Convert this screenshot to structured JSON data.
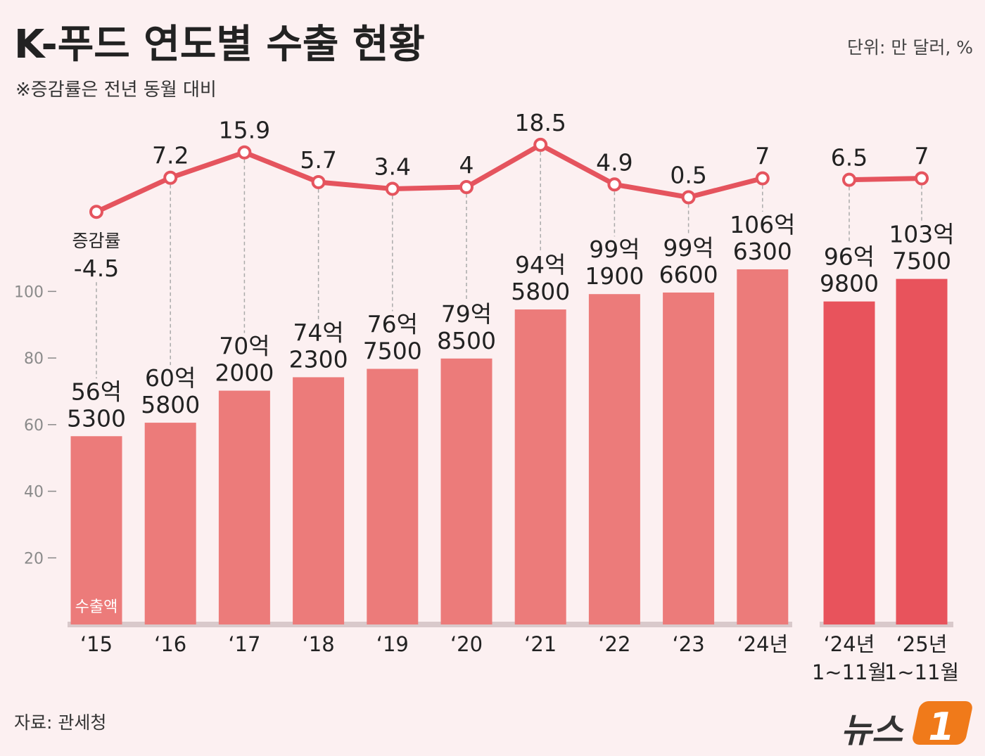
{
  "title": "K-푸드 연도별 수출 현황",
  "subtitle": "※증감률은 전년 동월 대비",
  "unit": "단위: 만 달러, %",
  "source": "자료: 관세청",
  "logo": [
    "뉴스",
    "1"
  ],
  "chart_data": [
    {
      "type": "combo",
      "categories": [
        "‘15",
        "‘16",
        "‘17",
        "‘18",
        "‘19",
        "‘20",
        "‘21",
        "‘22",
        "‘23",
        "‘24년"
      ],
      "ylim": [
        0,
        110
      ],
      "yticks": [
        20,
        40,
        60,
        80,
        100
      ],
      "y2lim": [
        -10,
        25
      ],
      "series": [
        {
          "name": "수출액",
          "type": "bar",
          "color": "#ec7b7a",
          "values": [
            56.53,
            60.58,
            70.2,
            74.23,
            76.75,
            79.85,
            94.58,
            99.19,
            99.66,
            106.63
          ],
          "value_labels": [
            "56억\n5300",
            "60억\n5800",
            "70억\n2000",
            "74억\n2300",
            "76억\n7500",
            "79억\n8500",
            "94억\n5800",
            "99억\n1900",
            "99억\n6600",
            "106억\n6300"
          ]
        },
        {
          "name": "증감률",
          "type": "line",
          "axis": "y2",
          "color": "#e5545e",
          "values": [
            -4.5,
            7.2,
            15.9,
            5.7,
            3.4,
            4,
            18.5,
            4.9,
            0.5,
            7
          ]
        }
      ]
    },
    {
      "type": "combo",
      "categories": [
        "‘24년\n1~11월",
        "‘25년\n1~11월"
      ],
      "ylim": [
        0,
        110
      ],
      "y2lim": [
        -10,
        25
      ],
      "series": [
        {
          "type": "bar",
          "color": "#e8535c",
          "values": [
            96.98,
            103.75
          ],
          "value_labels": [
            "96억\n9800",
            "103억\n7500"
          ]
        },
        {
          "type": "line",
          "axis": "y2",
          "color": "#e5545e",
          "values": [
            6.5,
            7
          ]
        }
      ]
    }
  ]
}
